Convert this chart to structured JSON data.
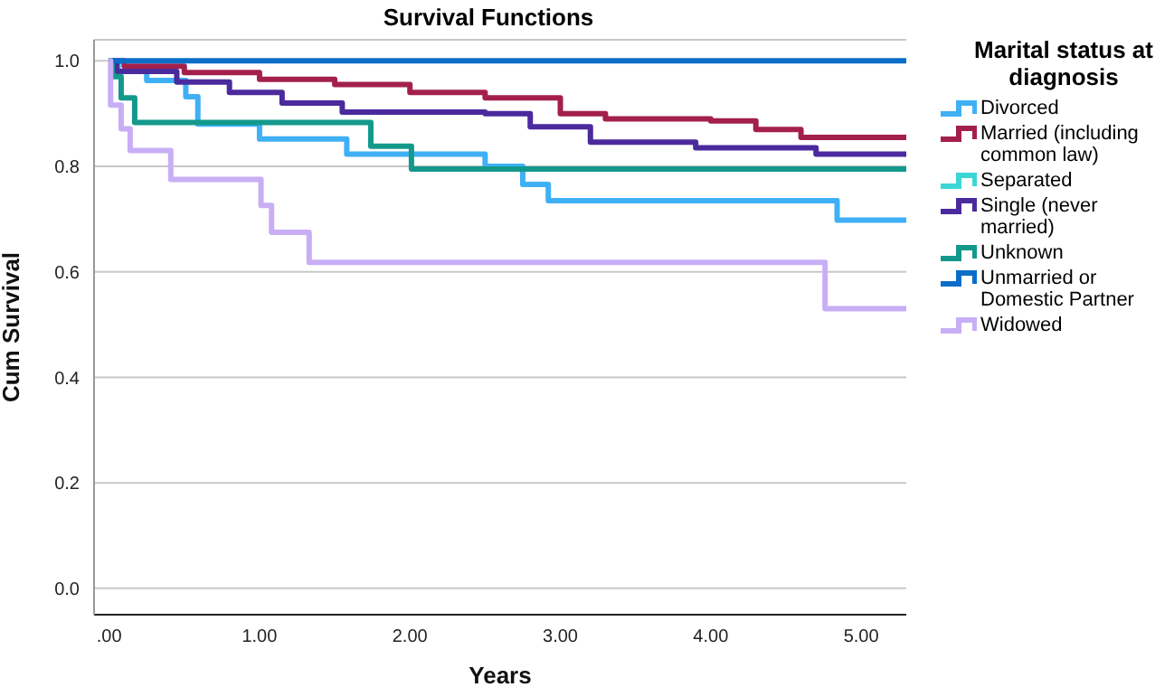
{
  "chart_data": {
    "type": "step",
    "title": "Survival Functions",
    "xlabel": "Years",
    "ylabel": "Cum Survival",
    "legend_title": "Marital status at diagnosis",
    "legend": "right",
    "grid": "y",
    "line_style": "solid",
    "marker": "none",
    "xlim": [
      -0.1,
      5.3
    ],
    "ylim": [
      -0.05,
      1.04
    ],
    "xticks": [
      {
        "value": 0,
        "label": ".00"
      },
      {
        "value": 1,
        "label": "1.00"
      },
      {
        "value": 2,
        "label": "2.00"
      },
      {
        "value": 3,
        "label": "3.00"
      },
      {
        "value": 4,
        "label": "4.00"
      },
      {
        "value": 5,
        "label": "5.00"
      }
    ],
    "yticks": [
      {
        "value": 0,
        "label": "0.0"
      },
      {
        "value": 0.2,
        "label": "0.2"
      },
      {
        "value": 0.4,
        "label": "0.4"
      },
      {
        "value": 0.6,
        "label": "0.6"
      },
      {
        "value": 0.8,
        "label": "0.8"
      },
      {
        "value": 1,
        "label": "1.0"
      }
    ],
    "series": [
      {
        "name": "Divorced",
        "color": "#3fb0f5",
        "x": [
          0,
          0.06,
          0.25,
          0.51,
          0.59,
          1.0,
          1.58,
          2.5,
          2.75,
          2.92,
          4.84,
          5.3
        ],
        "values": [
          1,
          0.98,
          0.963,
          0.932,
          0.88,
          0.852,
          0.823,
          0.8,
          0.766,
          0.735,
          0.698,
          0.698
        ]
      },
      {
        "name": "Married (including common law)",
        "color": "#a4204c",
        "x": [
          0,
          0.1,
          0.5,
          1.0,
          1.5,
          2.0,
          2.5,
          3.0,
          3.3,
          4.0,
          4.3,
          4.6,
          5.3
        ],
        "values": [
          1,
          0.99,
          0.978,
          0.965,
          0.955,
          0.94,
          0.93,
          0.9,
          0.89,
          0.886,
          0.87,
          0.855,
          0.855
        ]
      },
      {
        "name": "Separated",
        "color": "#3cd6d6"
      },
      {
        "name": "Single (never married)",
        "color": "#4b2a9e",
        "x": [
          0,
          0.05,
          0.45,
          0.8,
          1.15,
          1.55,
          2.5,
          2.8,
          3.2,
          3.9,
          4.7,
          5.3
        ],
        "values": [
          1,
          0.98,
          0.96,
          0.94,
          0.92,
          0.903,
          0.9,
          0.875,
          0.846,
          0.835,
          0.823,
          0.823
        ]
      },
      {
        "name": "Unknown",
        "color": "#13998c",
        "x": [
          0,
          0.02,
          0.08,
          0.17,
          1.74,
          2.01,
          5.3
        ],
        "values": [
          1,
          0.97,
          0.93,
          0.883,
          0.838,
          0.795,
          0.795
        ]
      },
      {
        "name": "Unmarried or Domestic Partner",
        "color": "#0a6ec8",
        "x": [
          0,
          5.3
        ],
        "values": [
          1,
          1
        ]
      },
      {
        "name": "Widowed",
        "color": "#c8aef5",
        "x": [
          0,
          0.01,
          0.08,
          0.14,
          0.41,
          1.01,
          1.08,
          1.33,
          4.76,
          5.3
        ],
        "values": [
          1,
          0.916,
          0.871,
          0.83,
          0.775,
          0.726,
          0.675,
          0.618,
          0.53,
          0.53
        ]
      }
    ]
  }
}
